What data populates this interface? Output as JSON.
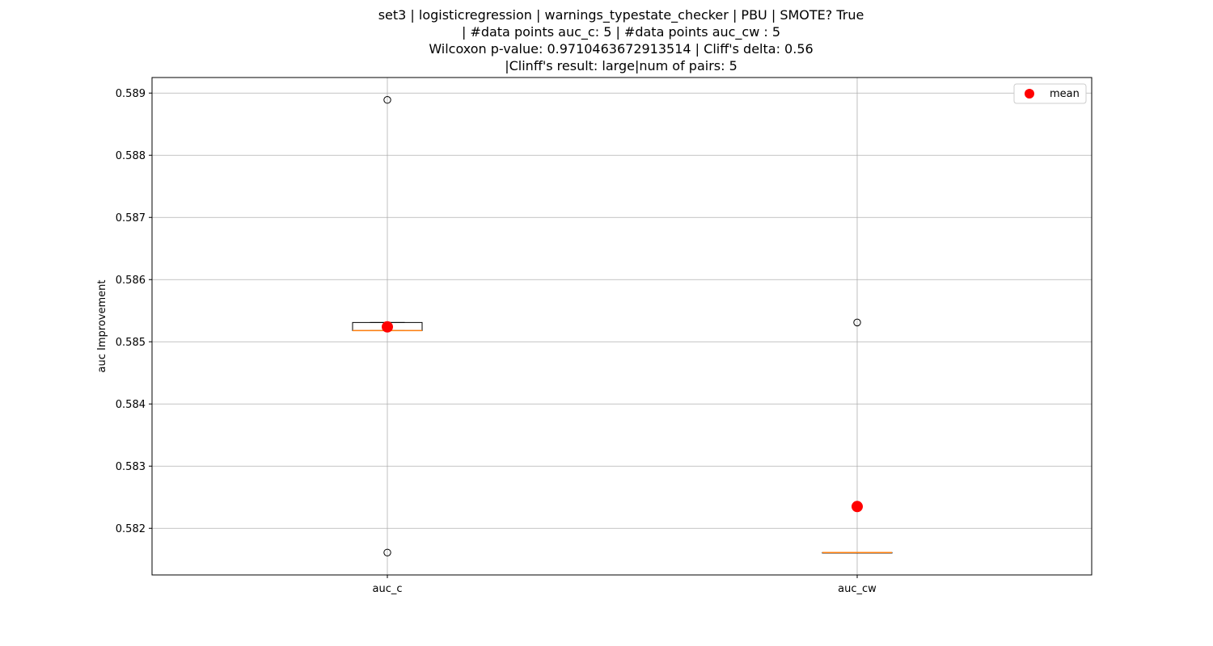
{
  "chart_data": {
    "type": "box",
    "title_lines": [
      "set3 | logisticregression | warnings_typestate_checker | PBU | SMOTE? True",
      "| #data points auc_c: 5 | #data points auc_cw : 5",
      "Wilcoxon p-value: 0.9710463672913514 | Cliff's delta: 0.56",
      "|Clinff's result: large|num of pairs: 5"
    ],
    "xlabel": "",
    "ylabel": "auc Improvement",
    "categories": [
      "auc_c",
      "auc_cw"
    ],
    "ylim": [
      0.58125,
      0.58925
    ],
    "yticks": [
      0.582,
      0.583,
      0.584,
      0.585,
      0.586,
      0.587,
      0.588,
      0.589
    ],
    "ytick_labels": [
      "0.582",
      "0.583",
      "0.584",
      "0.585",
      "0.586",
      "0.587",
      "0.588",
      "0.589"
    ],
    "grid": true,
    "legend": {
      "position": "top-right",
      "entries": [
        "mean"
      ]
    },
    "boxes": [
      {
        "name": "auc_c",
        "q1": 0.58518,
        "median": 0.58518,
        "q3": 0.58531,
        "whisker_low": 0.58518,
        "whisker_high": 0.58531,
        "outliers": [
          0.58889,
          0.58161
        ],
        "mean": 0.58524
      },
      {
        "name": "auc_cw",
        "q1": 0.58161,
        "median": 0.58161,
        "q3": 0.58161,
        "whisker_low": 0.58161,
        "whisker_high": 0.58161,
        "outliers": [
          0.58531
        ],
        "mean": 0.58235
      }
    ],
    "colors": {
      "box": "#000000",
      "median": "#ff7f0e",
      "mean": "#ff0000",
      "grid": "#b0b0b0"
    }
  }
}
